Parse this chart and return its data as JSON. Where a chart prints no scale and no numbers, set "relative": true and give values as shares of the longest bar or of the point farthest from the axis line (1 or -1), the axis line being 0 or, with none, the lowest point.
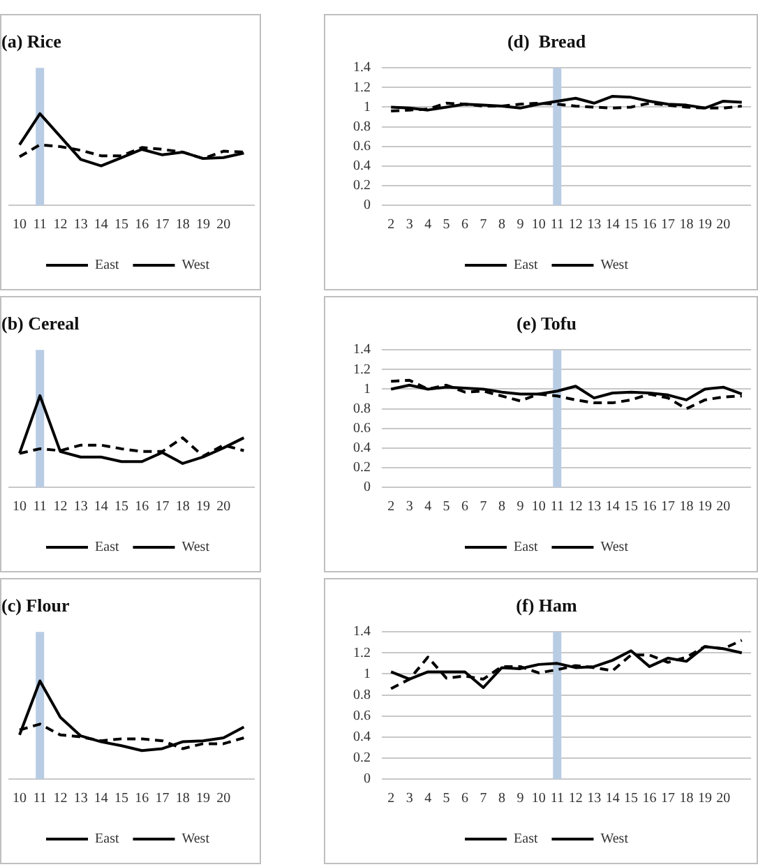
{
  "chart_data": [
    {
      "type": "line",
      "title": "(a) Rice",
      "relative": true,
      "legend": "bottom",
      "tick_labels": "x",
      "categories": [
        "10",
        "11",
        "12",
        "13",
        "14",
        "15",
        "16",
        "17",
        "18",
        "19",
        "20",
        null
      ],
      "series": [
        {
          "name": "East",
          "color": "#000000",
          "line_style": "solid",
          "values": [
            0.66,
            1,
            0.75,
            0.5,
            0.43,
            0.52,
            0.61,
            0.55,
            0.58,
            0.51,
            0.52,
            0.57
          ]
        },
        {
          "name": "West",
          "color": "#000000",
          "line_style": "dashed",
          "values": [
            0.53,
            0.66,
            0.64,
            0.6,
            0.54,
            0.54,
            0.63,
            0.61,
            0.58,
            0.51,
            0.59,
            0.58
          ]
        }
      ],
      "ref_lines": [
        {
          "axis": "x",
          "value": "11",
          "color": "#b8cce4"
        }
      ]
    },
    {
      "type": "line",
      "title": "(b) Cereal",
      "relative": true,
      "legend": "bottom",
      "tick_labels": "x",
      "categories": [
        "10",
        "11",
        "12",
        "13",
        "14",
        "15",
        "16",
        "17",
        "18",
        "19",
        "20",
        null
      ],
      "series": [
        {
          "name": "East",
          "color": "#000000",
          "line_style": "solid",
          "values": [
            0.37,
            1,
            0.39,
            0.33,
            0.33,
            0.28,
            0.28,
            0.38,
            0.26,
            0.33,
            0.43,
            0.54
          ]
        },
        {
          "name": "West",
          "color": "#000000",
          "line_style": "dashed",
          "values": [
            0.37,
            0.42,
            0.4,
            0.46,
            0.46,
            0.42,
            0.39,
            0.39,
            0.54,
            0.34,
            0.46,
            0.4
          ]
        }
      ],
      "ref_lines": [
        {
          "axis": "x",
          "value": "11",
          "color": "#b8cce4"
        }
      ]
    },
    {
      "type": "line",
      "title": "(c) Flour",
      "relative": true,
      "legend": "bottom",
      "tick_labels": "x",
      "categories": [
        "10",
        "11",
        "12",
        "13",
        "14",
        "15",
        "16",
        "17",
        "18",
        "19",
        "20",
        null
      ],
      "series": [
        {
          "name": "East",
          "color": "#000000",
          "line_style": "solid",
          "values": [
            0.45,
            1,
            0.63,
            0.44,
            0.38,
            0.34,
            0.29,
            0.31,
            0.38,
            0.39,
            0.42,
            0.53
          ]
        },
        {
          "name": "West",
          "color": "#000000",
          "line_style": "dashed",
          "values": [
            0.5,
            0.56,
            0.45,
            0.43,
            0.39,
            0.41,
            0.41,
            0.39,
            0.31,
            0.36,
            0.36,
            0.42
          ]
        }
      ],
      "ref_lines": [
        {
          "axis": "x",
          "value": "11",
          "color": "#b8cce4"
        }
      ]
    },
    {
      "type": "line",
      "title": "(d)  Bread",
      "grid": "y",
      "legend": "bottom",
      "ylim": [
        0,
        1.4
      ],
      "yticks": [
        0,
        0.2,
        0.4,
        0.6,
        0.8,
        1,
        1.2,
        1.4
      ],
      "categories": [
        "2",
        "3",
        "4",
        "5",
        "6",
        "7",
        "8",
        "9",
        "10",
        "11",
        "12",
        "13",
        "14",
        "15",
        "16",
        "17",
        "18",
        "19",
        "20",
        null
      ],
      "series": [
        {
          "name": "East",
          "color": "#000000",
          "line_style": "solid",
          "values": [
            1.0,
            0.99,
            0.97,
            1.0,
            1.03,
            1.02,
            1.01,
            0.99,
            1.03,
            1.06,
            1.09,
            1.04,
            1.11,
            1.1,
            1.06,
            1.03,
            1.02,
            0.99,
            1.06,
            1.05
          ]
        },
        {
          "name": "West",
          "color": "#000000",
          "line_style": "dashed",
          "values": [
            0.96,
            0.97,
            0.98,
            1.04,
            1.03,
            1.01,
            1.01,
            1.03,
            1.04,
            1.03,
            1.01,
            1.0,
            0.99,
            1.0,
            1.04,
            1.02,
            1.0,
            0.99,
            0.99,
            1.01
          ]
        }
      ],
      "ref_lines": [
        {
          "axis": "x",
          "value": "11",
          "color": "#b8cce4"
        }
      ]
    },
    {
      "type": "line",
      "title": "(e) Tofu",
      "grid": "y",
      "legend": "bottom",
      "ylim": [
        0,
        1.4
      ],
      "yticks": [
        0,
        0.2,
        0.4,
        0.6,
        0.8,
        1,
        1.2,
        1.4
      ],
      "categories": [
        "2",
        "3",
        "4",
        "5",
        "6",
        "7",
        "8",
        "9",
        "10",
        "11",
        "12",
        "13",
        "14",
        "15",
        "16",
        "17",
        "18",
        "19",
        "20",
        null
      ],
      "series": [
        {
          "name": "East",
          "color": "#000000",
          "line_style": "solid",
          "values": [
            1.0,
            1.04,
            1.0,
            1.02,
            1.01,
            1.0,
            0.97,
            0.95,
            0.95,
            0.98,
            1.03,
            0.91,
            0.96,
            0.97,
            0.96,
            0.94,
            0.89,
            1.0,
            1.02,
            0.95
          ]
        },
        {
          "name": "West",
          "color": "#000000",
          "line_style": "dashed",
          "values": [
            1.08,
            1.09,
            1.0,
            1.04,
            0.97,
            0.98,
            0.93,
            0.88,
            0.95,
            0.93,
            0.89,
            0.86,
            0.86,
            0.89,
            0.95,
            0.91,
            0.8,
            0.89,
            0.92,
            0.93
          ]
        }
      ],
      "ref_lines": [
        {
          "axis": "x",
          "value": "11",
          "color": "#b8cce4"
        }
      ]
    },
    {
      "type": "line",
      "title": "(f) Ham",
      "grid": "y",
      "legend": "bottom",
      "ylim": [
        0,
        1.4
      ],
      "yticks": [
        0,
        0.2,
        0.4,
        0.6,
        0.8,
        1,
        1.2,
        1.4
      ],
      "categories": [
        "2",
        "3",
        "4",
        "5",
        "6",
        "7",
        "8",
        "9",
        "10",
        "11",
        "12",
        "13",
        "14",
        "15",
        "16",
        "17",
        "18",
        "19",
        "20",
        null
      ],
      "series": [
        {
          "name": "East",
          "color": "#000000",
          "line_style": "solid",
          "values": [
            1.02,
            0.95,
            1.02,
            1.02,
            1.02,
            0.87,
            1.06,
            1.05,
            1.09,
            1.1,
            1.06,
            1.07,
            1.13,
            1.22,
            1.07,
            1.15,
            1.12,
            1.26,
            1.24,
            1.2
          ]
        },
        {
          "name": "West",
          "color": "#000000",
          "line_style": "dashed",
          "values": [
            0.86,
            0.95,
            1.16,
            0.96,
            0.98,
            0.95,
            1.07,
            1.07,
            1.01,
            1.04,
            1.08,
            1.06,
            1.03,
            1.18,
            1.18,
            1.11,
            1.16,
            1.26,
            1.24,
            1.32
          ]
        }
      ],
      "ref_lines": [
        {
          "axis": "x",
          "value": "11",
          "color": "#b8cce4"
        }
      ]
    }
  ]
}
